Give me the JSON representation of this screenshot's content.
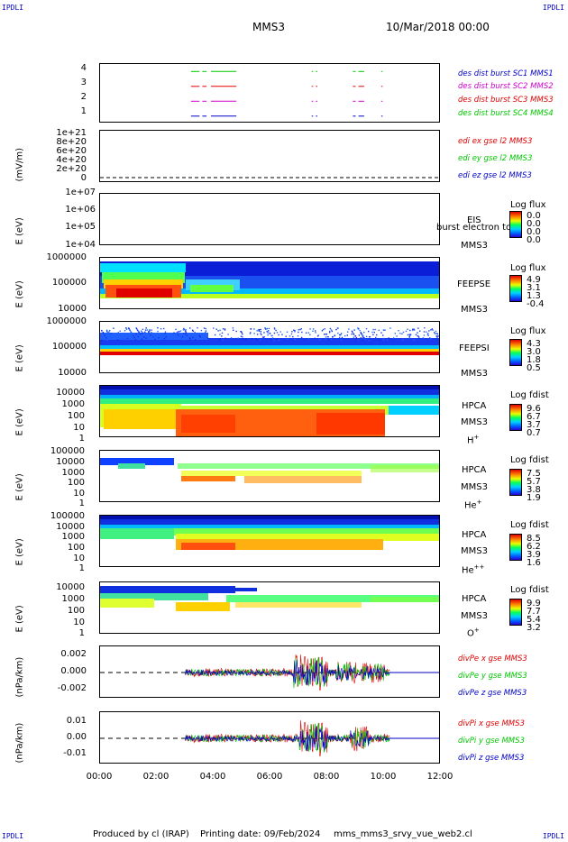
{
  "corner_labels": {
    "top_left": "IPDLI",
    "top_right": "IPDLI",
    "bottom_left": "IPDLI",
    "bottom_right": "IPDLI"
  },
  "header": {
    "mission": "MMS3",
    "date": "10/Mar/2018 00:00"
  },
  "footer": {
    "produced_by": "Produced by cl (IRAP)",
    "printing_date": "Printing date: 09/Feb/2024",
    "filename": "mms_mms3_srvy_vue_web2.cl"
  },
  "colors": {
    "red": "#e00000",
    "green": "#00c800",
    "blue": "#0000c8",
    "magenta": "#d000d0",
    "black": "#000000"
  },
  "chart_data": [
    {
      "type": "line",
      "panel": "burst",
      "ylabel": "",
      "ylim": [
        0.5,
        4.5
      ],
      "yticks": [
        "4",
        "3",
        "2",
        "1"
      ],
      "series": [
        {
          "name": "des dist burst SC1 MMS1",
          "color": "#0000c8",
          "level": 1
        },
        {
          "name": "des dist burst SC2 MMS2",
          "color": "#d000d0",
          "level": 2
        },
        {
          "name": "des dist burst SC3 MMS3",
          "color": "#e00000",
          "level": 3
        },
        {
          "name": "des dist burst SC4 MMS4",
          "color": "#00c800",
          "level": 4
        }
      ],
      "burst_intervals": [
        [
          3.2,
          3.5
        ],
        [
          3.6,
          3.75
        ],
        [
          3.9,
          4.8
        ],
        [
          7.45,
          7.5
        ],
        [
          7.6,
          7.65
        ],
        [
          8.9,
          9.0
        ],
        [
          9.1,
          9.3
        ],
        [
          9.9,
          9.95
        ]
      ]
    },
    {
      "type": "line",
      "panel": "edi",
      "ylabel": "(mV/m)",
      "yticks": [
        "1e+21",
        "8e+20",
        "6e+20",
        "4e+20",
        "2e+20",
        "0"
      ],
      "series": [
        {
          "name": "edi ex gse l2 MMS3",
          "color": "#e00000"
        },
        {
          "name": "edi ey gse l2 MMS3",
          "color": "#00c800"
        },
        {
          "name": "edi ez gse l2 MMS3",
          "color": "#0000c8"
        }
      ]
    },
    {
      "type": "heatmap",
      "panel": "eis",
      "ylabel": "E (eV)",
      "yticks": [
        "1e+07",
        "1e+06",
        "1e+05",
        "1e+04"
      ],
      "instrument": "EIS",
      "overlay": "burst electron to",
      "spacecraft": "MMS3",
      "colorbar_title": "Log flux",
      "colorbar_values": [
        "0.0",
        "0.0",
        "0.0",
        "0.0"
      ]
    },
    {
      "type": "heatmap",
      "panel": "feepse",
      "ylabel": "E (eV)",
      "yticks": [
        "1000000",
        "100000",
        "10000"
      ],
      "instrument": "FEEPSE",
      "spacecraft": "MMS3",
      "colorbar_title": "Log flux",
      "colorbar_values": [
        "4.9",
        "3.1",
        "1.3",
        "-0.4"
      ]
    },
    {
      "type": "heatmap",
      "panel": "feepsi",
      "ylabel": "E (eV)",
      "yticks": [
        "1000000",
        "100000",
        "10000"
      ],
      "instrument": "FEEPSI",
      "spacecraft": "MMS3",
      "colorbar_title": "Log flux",
      "colorbar_values": [
        "4.3",
        "3.0",
        "1.8",
        "0.5"
      ]
    },
    {
      "type": "heatmap",
      "panel": "hpca_h",
      "ylabel": "E (eV)",
      "yticks": [
        "10000",
        "1000",
        "100",
        "10",
        "1"
      ],
      "instrument": "HPCA",
      "spacecraft": "MMS3",
      "species": "H",
      "charge": "+",
      "colorbar_title": "Log fdist",
      "colorbar_values": [
        "9.6",
        "6.7",
        "3.7",
        "0.7"
      ]
    },
    {
      "type": "heatmap",
      "panel": "hpca_he",
      "ylabel": "E (eV)",
      "yticks": [
        "100000",
        "10000",
        "1000",
        "100",
        "10",
        "1"
      ],
      "instrument": "HPCA",
      "spacecraft": "MMS3",
      "species": "He",
      "charge": "+",
      "colorbar_title": "Log fdist",
      "colorbar_values": [
        "7.5",
        "5.7",
        "3.8",
        "1.9"
      ]
    },
    {
      "type": "heatmap",
      "panel": "hpca_hepp",
      "ylabel": "E (eV)",
      "yticks": [
        "100000",
        "10000",
        "1000",
        "100",
        "10",
        "1"
      ],
      "instrument": "HPCA",
      "spacecraft": "MMS3",
      "species": "He",
      "charge": "++",
      "colorbar_title": "Log fdist",
      "colorbar_values": [
        "8.5",
        "6.2",
        "3.9",
        "1.6"
      ]
    },
    {
      "type": "heatmap",
      "panel": "hpca_o",
      "ylabel": "E (eV)",
      "yticks": [
        "10000",
        "1000",
        "100",
        "10",
        "1"
      ],
      "instrument": "HPCA",
      "spacecraft": "MMS3",
      "species": "O",
      "charge": "+",
      "colorbar_title": "Log fdist",
      "colorbar_values": [
        "9.9",
        "7.7",
        "5.4",
        "3.2"
      ]
    },
    {
      "type": "line",
      "panel": "divpe",
      "ylabel": "(nPa/km)",
      "yticks": [
        "0.002",
        "0.000",
        "-0.002"
      ],
      "ylim": [
        -0.003,
        0.003
      ],
      "series": [
        {
          "name": "divPe x gse MMS3",
          "color": "#e00000"
        },
        {
          "name": "divPe y gse MMS3",
          "color": "#00c800"
        },
        {
          "name": "divPe z gse MMS3",
          "color": "#0000c8"
        }
      ]
    },
    {
      "type": "line",
      "panel": "divpi",
      "ylabel": "(nPa/km)",
      "yticks": [
        "0.01",
        "0.00",
        "-0.01"
      ],
      "ylim": [
        -0.015,
        0.015
      ],
      "series": [
        {
          "name": "divPi x gse MMS3",
          "color": "#e00000"
        },
        {
          "name": "divPi y gse MMS3",
          "color": "#00c800"
        },
        {
          "name": "divPi z gse MMS3",
          "color": "#0000c8"
        }
      ],
      "xlabels": [
        "00:00",
        "02:00",
        "04:00",
        "06:00",
        "08:00",
        "10:00",
        "12:00"
      ]
    }
  ]
}
